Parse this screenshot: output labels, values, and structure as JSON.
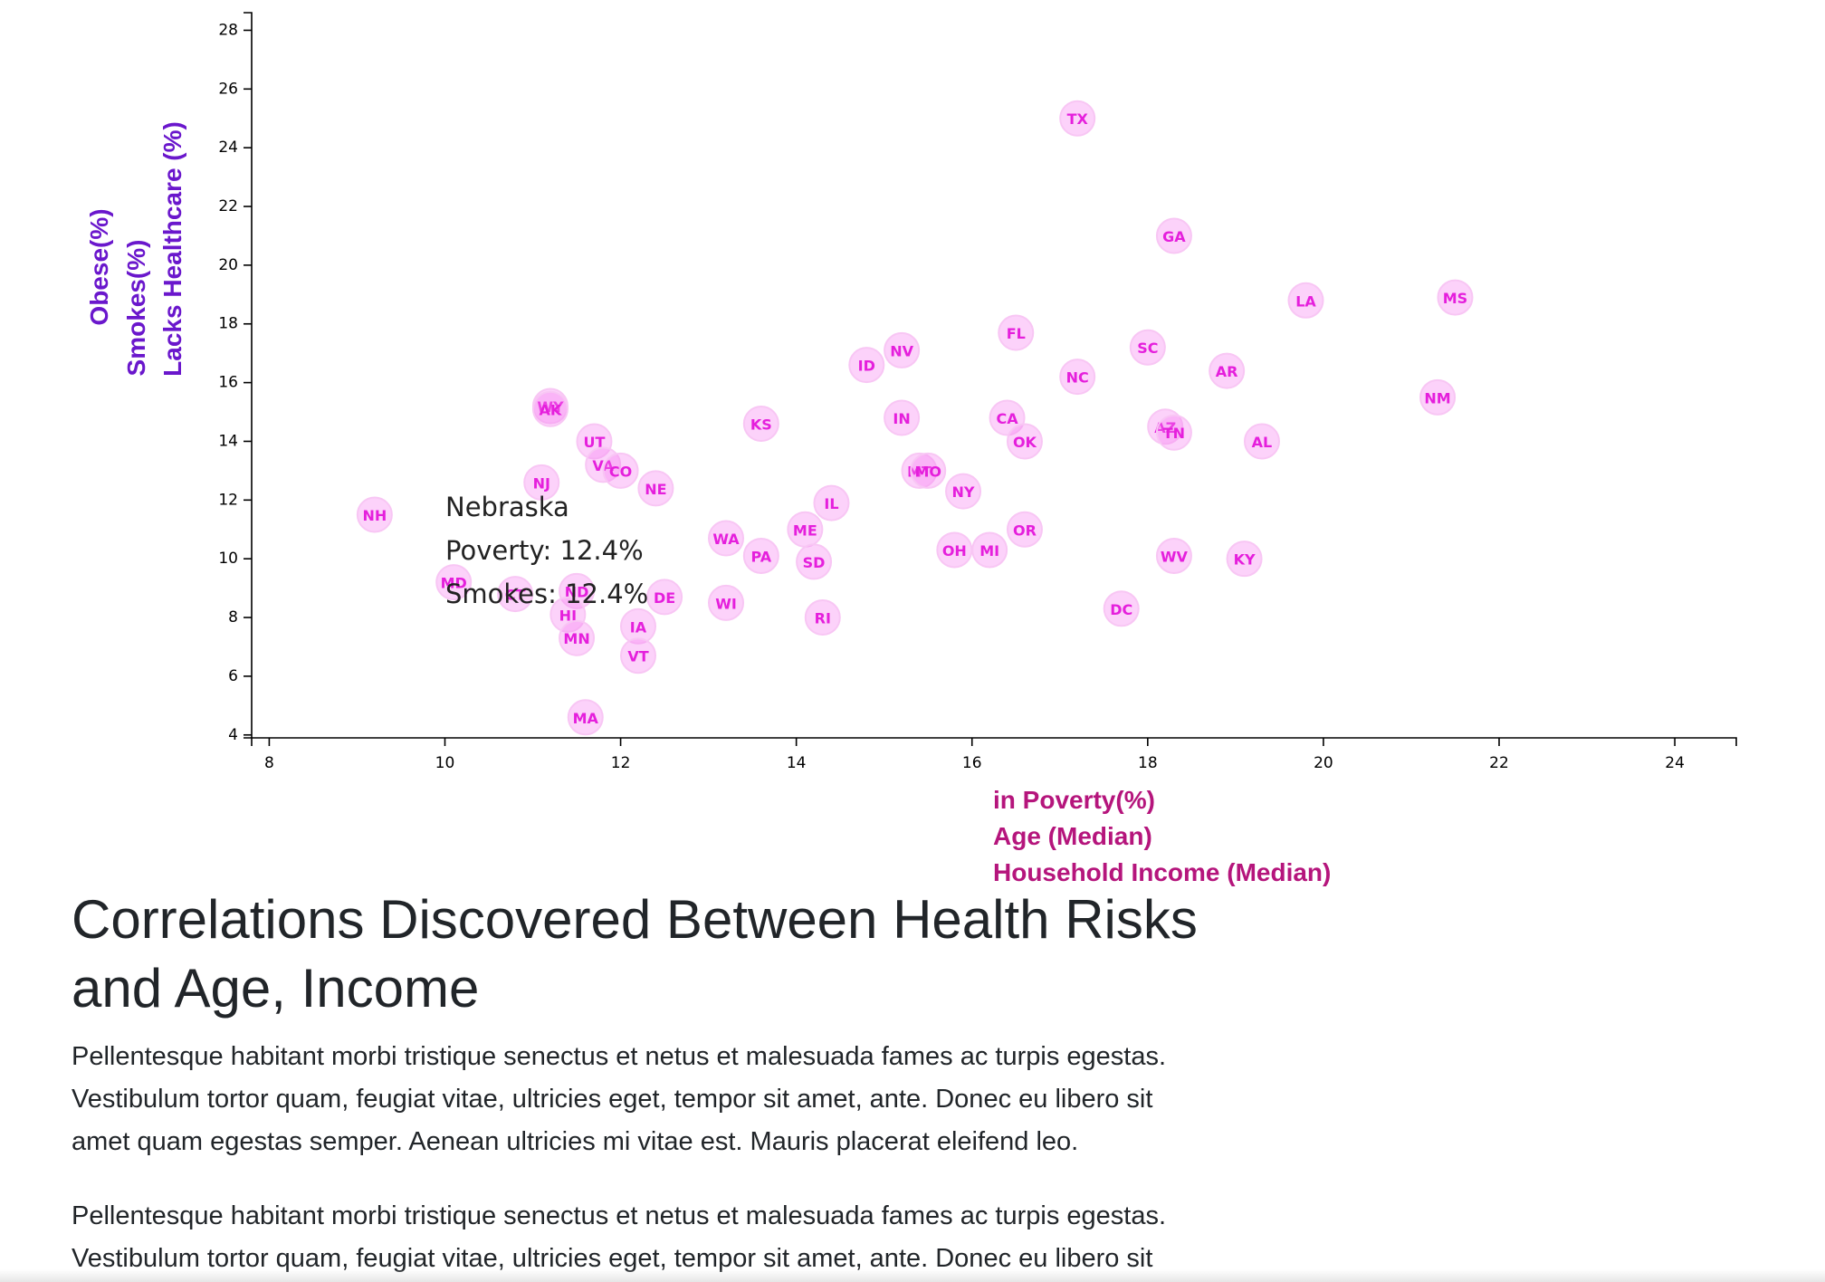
{
  "chart_data": {
    "type": "scatter",
    "x_ticks": [
      8,
      10,
      12,
      14,
      16,
      18,
      20,
      22,
      24
    ],
    "y_ticks": [
      4,
      6,
      8,
      10,
      12,
      14,
      16,
      18,
      20,
      22,
      24,
      26,
      28
    ],
    "xlim": [
      7.8,
      24.7
    ],
    "ylim": [
      3.9,
      28.6
    ],
    "xlabels": [
      "in Poverty(%)",
      "Age (Median)",
      "Household Income (Median)"
    ],
    "ylabels": [
      "Obese(%)",
      "Smokes(%)",
      "Lacks Healthcare (%)"
    ],
    "grid": false,
    "points": [
      {
        "abbr": "TX",
        "x": 17.2,
        "y": 25.0
      },
      {
        "abbr": "GA",
        "x": 18.3,
        "y": 21.0
      },
      {
        "abbr": "LA",
        "x": 19.8,
        "y": 18.8
      },
      {
        "abbr": "MS",
        "x": 21.5,
        "y": 18.9
      },
      {
        "abbr": "FL",
        "x": 16.5,
        "y": 17.7
      },
      {
        "abbr": "SC",
        "x": 18.0,
        "y": 17.2
      },
      {
        "abbr": "NV",
        "x": 15.2,
        "y": 17.1
      },
      {
        "abbr": "ID",
        "x": 14.8,
        "y": 16.6
      },
      {
        "abbr": "AR",
        "x": 18.9,
        "y": 16.4
      },
      {
        "abbr": "NC",
        "x": 17.2,
        "y": 16.2
      },
      {
        "abbr": "NM",
        "x": 21.3,
        "y": 15.5
      },
      {
        "abbr": "WY",
        "x": 11.2,
        "y": 15.2
      },
      {
        "abbr": "AK",
        "x": 11.2,
        "y": 15.1
      },
      {
        "abbr": "KS",
        "x": 13.6,
        "y": 14.6
      },
      {
        "abbr": "IN",
        "x": 15.2,
        "y": 14.8
      },
      {
        "abbr": "CA",
        "x": 16.4,
        "y": 14.8
      },
      {
        "abbr": "AZ",
        "x": 18.2,
        "y": 14.5
      },
      {
        "abbr": "TN",
        "x": 18.3,
        "y": 14.3
      },
      {
        "abbr": "UT",
        "x": 11.7,
        "y": 14.0
      },
      {
        "abbr": "OK",
        "x": 16.6,
        "y": 14.0
      },
      {
        "abbr": "AL",
        "x": 19.3,
        "y": 14.0
      },
      {
        "abbr": "VA",
        "x": 11.8,
        "y": 13.2
      },
      {
        "abbr": "CO",
        "x": 12.0,
        "y": 13.0
      },
      {
        "abbr": "MT",
        "x": 15.4,
        "y": 13.0
      },
      {
        "abbr": "MO",
        "x": 15.5,
        "y": 13.0
      },
      {
        "abbr": "NJ",
        "x": 11.1,
        "y": 12.6
      },
      {
        "abbr": "NE",
        "x": 12.4,
        "y": 12.4
      },
      {
        "abbr": "NY",
        "x": 15.9,
        "y": 12.3
      },
      {
        "abbr": "IL",
        "x": 14.4,
        "y": 11.9
      },
      {
        "abbr": "NH",
        "x": 9.2,
        "y": 11.5
      },
      {
        "abbr": "ME",
        "x": 14.1,
        "y": 11.0
      },
      {
        "abbr": "OR",
        "x": 16.6,
        "y": 11.0
      },
      {
        "abbr": "WA",
        "x": 13.2,
        "y": 10.7
      },
      {
        "abbr": "OH",
        "x": 15.8,
        "y": 10.3
      },
      {
        "abbr": "MI",
        "x": 16.2,
        "y": 10.3
      },
      {
        "abbr": "PA",
        "x": 13.6,
        "y": 10.1
      },
      {
        "abbr": "WV",
        "x": 18.3,
        "y": 10.1
      },
      {
        "abbr": "KY",
        "x": 19.1,
        "y": 10.0
      },
      {
        "abbr": "SD",
        "x": 14.2,
        "y": 9.9
      },
      {
        "abbr": "MD",
        "x": 10.1,
        "y": 9.2
      },
      {
        "abbr": "CT",
        "x": 10.8,
        "y": 8.8
      },
      {
        "abbr": "ND",
        "x": 11.5,
        "y": 8.9
      },
      {
        "abbr": "DE",
        "x": 12.5,
        "y": 8.7
      },
      {
        "abbr": "WI",
        "x": 13.2,
        "y": 8.5
      },
      {
        "abbr": "DC",
        "x": 17.7,
        "y": 8.3
      },
      {
        "abbr": "HI",
        "x": 11.4,
        "y": 8.1
      },
      {
        "abbr": "RI",
        "x": 14.3,
        "y": 8.0
      },
      {
        "abbr": "IA",
        "x": 12.2,
        "y": 7.7
      },
      {
        "abbr": "MN",
        "x": 11.5,
        "y": 7.3
      },
      {
        "abbr": "VT",
        "x": 12.2,
        "y": 6.7
      },
      {
        "abbr": "MA",
        "x": 11.6,
        "y": 4.6
      }
    ],
    "tooltip": {
      "lines": [
        "Nebraska",
        "Poverty: 12.4%",
        "Smokes: 12.4%"
      ]
    },
    "colors": {
      "circle_fill": "#f57ff0",
      "circle_stroke": "#f8c6f4",
      "state_label": "#e51fdc",
      "y_label": "#6a17cc",
      "x_label": "#b5157c"
    }
  },
  "article": {
    "heading_line1": "Correlations Discovered Between Health Risks",
    "heading_line2": "and Age, Income",
    "paragraph1": [
      "Pellentesque habitant morbi tristique senectus et netus et malesuada fames ac turpis egestas.",
      "Vestibulum tortor quam, feugiat vitae, ultricies eget, tempor sit amet, ante. Donec eu libero sit",
      "amet quam egestas semper. Aenean ultricies mi vitae est. Mauris placerat eleifend leo."
    ],
    "paragraph2": [
      "Pellentesque habitant morbi tristique senectus et netus et malesuada fames ac turpis egestas.",
      "Vestibulum tortor quam, feugiat vitae, ultricies eget, tempor sit amet, ante. Donec eu libero sit"
    ]
  }
}
